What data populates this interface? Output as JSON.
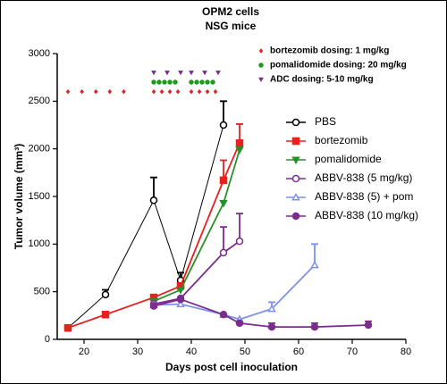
{
  "chart_data": {
    "type": "line",
    "title": "OPM2 cells",
    "subtitle": "NSG mice",
    "x_label": "Days post cell inoculation",
    "y_label": "Tumor volume (mm³)",
    "xlim": [
      15,
      80
    ],
    "xticks": [
      20,
      30,
      40,
      50,
      60,
      70,
      80
    ],
    "ylim": [
      0,
      3000
    ],
    "yticks": [
      0,
      500,
      1000,
      1500,
      2000,
      2500,
      3000
    ],
    "series": [
      {
        "name": "PBS",
        "color": "#000000",
        "marker": "circle",
        "filled": false,
        "x": [
          17,
          24,
          33,
          38,
          46
        ],
        "values": [
          120,
          470,
          1460,
          620,
          2250
        ],
        "errors": [
          null,
          50,
          240,
          80,
          250
        ]
      },
      {
        "name": "bortezomib",
        "color": "#e8201e",
        "marker": "square",
        "filled": true,
        "x": [
          17,
          24,
          33,
          38,
          46,
          49
        ],
        "values": [
          120,
          260,
          440,
          560,
          1670,
          2060
        ],
        "errors": [
          null,
          null,
          null,
          null,
          210,
          200
        ]
      },
      {
        "name": "pomalidomide",
        "color": "#2a8f2a",
        "marker": "triangle-down",
        "filled": true,
        "x": [
          33,
          38,
          46,
          49
        ],
        "values": [
          400,
          520,
          1430,
          1990
        ],
        "errors": [
          null,
          null,
          null,
          null
        ]
      },
      {
        "name": "ABBV-838 (5 mg/kg)",
        "color": "#7b2d8e",
        "marker": "circle",
        "filled": false,
        "x": [
          33,
          38,
          46,
          49
        ],
        "values": [
          370,
          430,
          910,
          1030
        ],
        "errors": [
          null,
          null,
          270,
          290
        ]
      },
      {
        "name": "ABBV-838 (5) + pom",
        "color": "#7d8ff0",
        "marker": "triangle-up",
        "filled": false,
        "x": [
          33,
          38,
          46,
          49,
          55,
          63
        ],
        "values": [
          360,
          370,
          260,
          210,
          320,
          780
        ],
        "errors": [
          null,
          null,
          null,
          null,
          70,
          220
        ]
      },
      {
        "name": "ABBV-838 (10 mg/kg)",
        "color": "#7b2d8e",
        "marker": "circle",
        "filled": true,
        "x": [
          33,
          38,
          46,
          49,
          55,
          63,
          73
        ],
        "values": [
          350,
          420,
          260,
          170,
          130,
          130,
          150
        ],
        "errors": [
          null,
          null,
          null,
          null,
          40,
          40,
          40
        ]
      }
    ],
    "dosing": [
      {
        "name": "bortezomib dosing: 1 mg/kg",
        "color": "#e8201e",
        "marker": "diamond",
        "level": 2600,
        "days": [
          17,
          19.6,
          22.2,
          24.8,
          27.4,
          33,
          34.5,
          36,
          37.5,
          40,
          41.5,
          43,
          44.5
        ]
      },
      {
        "name": "pomalidomide dosing: 20 mg/kg",
        "color": "#1a9b1a",
        "marker": "circle",
        "level": 2700,
        "days": [
          33,
          34,
          35,
          36,
          37,
          40,
          41,
          42,
          43,
          44
        ]
      },
      {
        "name": "ADC dosing: 5-10 mg/kg",
        "color": "#7b2d8e",
        "marker": "triangle-down",
        "level": 2800,
        "days": [
          33,
          35.5,
          38,
          40,
          42.5,
          45
        ]
      }
    ]
  }
}
